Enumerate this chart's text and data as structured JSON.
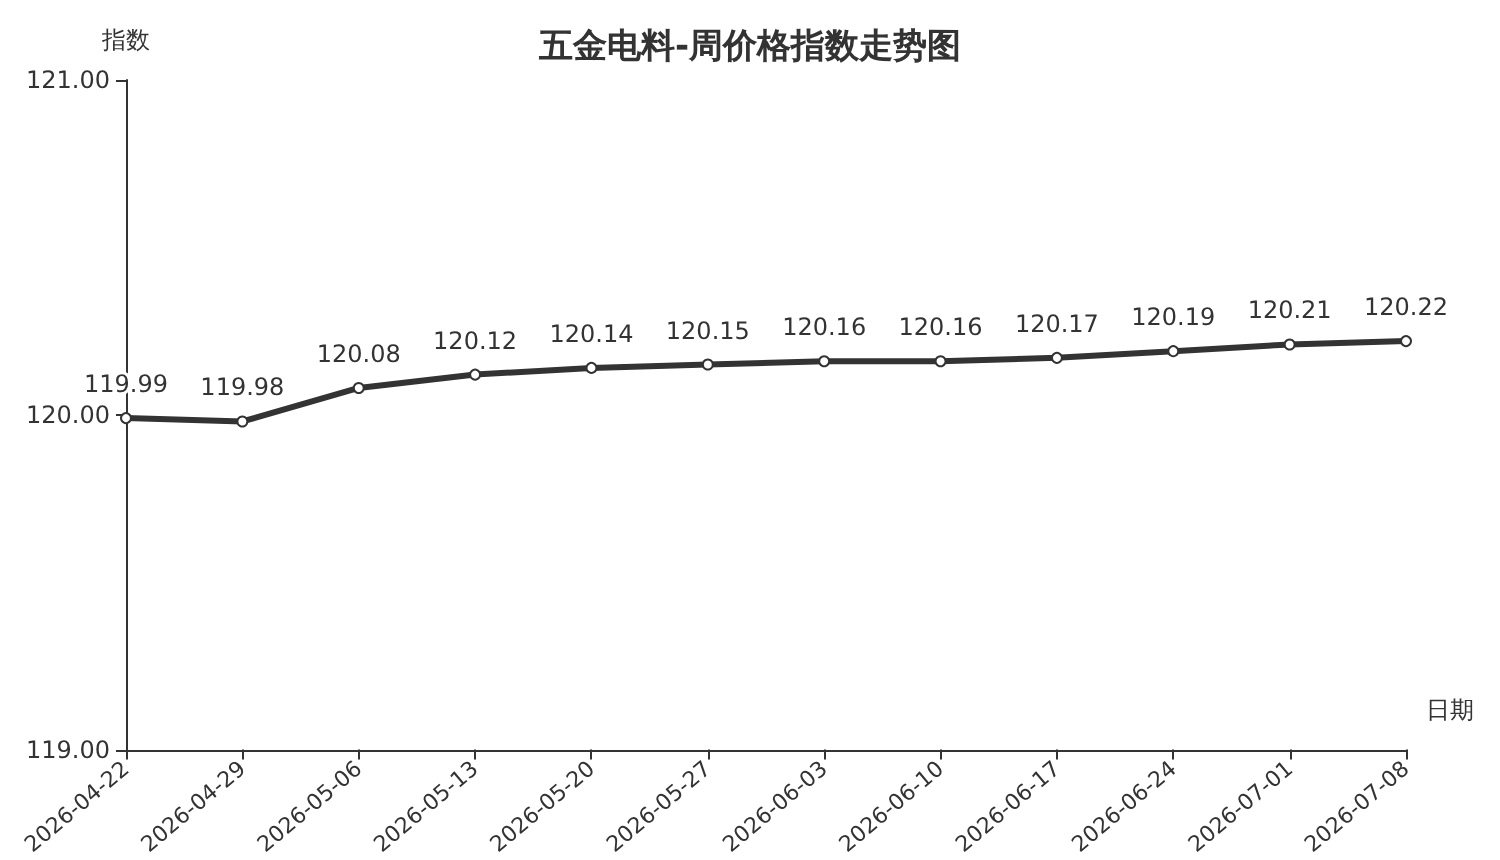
{
  "chart_data": {
    "type": "line",
    "title": "五金电料-周价格指数走势图",
    "xlabel": "日期",
    "ylabel": "指数",
    "categories": [
      "2026-04-22",
      "2026-04-29",
      "2026-05-06",
      "2026-05-13",
      "2026-05-20",
      "2026-05-27",
      "2026-06-03",
      "2026-06-10",
      "2026-06-17",
      "2026-06-24",
      "2026-07-01",
      "2026-07-08"
    ],
    "series": [
      {
        "color": "#333333",
        "values": [
          119.99,
          119.98,
          120.08,
          120.12,
          120.14,
          120.15,
          120.16,
          120.16,
          120.17,
          120.19,
          120.21,
          120.22
        ]
      }
    ],
    "ylim": [
      119,
      121
    ],
    "yticks": [
      {
        "value": 119,
        "label": "119.00"
      },
      {
        "value": 120,
        "label": "120.00"
      },
      {
        "value": 121,
        "label": "121.00"
      }
    ],
    "grid": false,
    "marker": "circle",
    "line_style": "solid",
    "data_labels": true
  }
}
